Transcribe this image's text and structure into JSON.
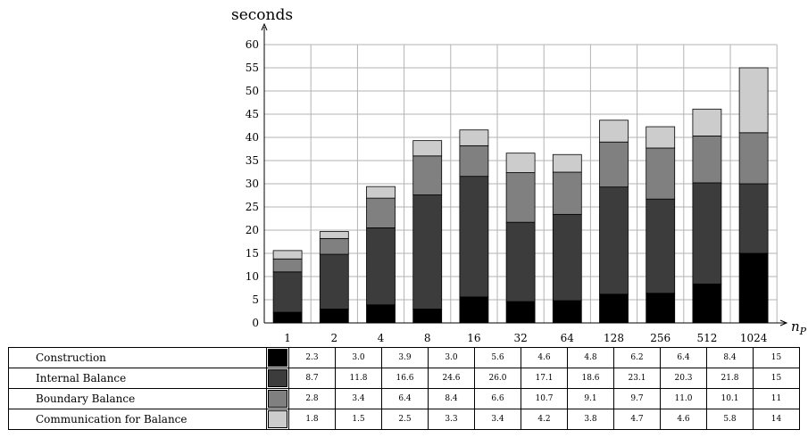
{
  "chart_data": {
    "type": "bar",
    "stacked": true,
    "ylabel": "seconds",
    "xlabel": "n_P",
    "ylim": [
      0,
      60
    ],
    "yticks": [
      0,
      5,
      10,
      15,
      20,
      25,
      30,
      35,
      40,
      45,
      50,
      55,
      60
    ],
    "grid": true,
    "categories": [
      "1",
      "2",
      "4",
      "8",
      "16",
      "32",
      "64",
      "128",
      "256",
      "512",
      "1024"
    ],
    "series": [
      {
        "name": "Construction",
        "color": "#000000",
        "values": [
          2.3,
          3.0,
          3.9,
          3.0,
          5.6,
          4.6,
          4.8,
          6.2,
          6.4,
          8.4,
          15
        ]
      },
      {
        "name": "Internal Balance",
        "color": "#3c3c3c",
        "values": [
          8.7,
          11.8,
          16.6,
          24.6,
          26.0,
          17.1,
          18.6,
          23.1,
          20.3,
          21.8,
          15
        ]
      },
      {
        "name": "Boundary Balance",
        "color": "#808080",
        "values": [
          2.8,
          3.4,
          6.4,
          8.4,
          6.6,
          10.7,
          9.1,
          9.7,
          11.0,
          10.1,
          11
        ]
      },
      {
        "name": "Communication for Balance",
        "color": "#cccccc",
        "values": [
          1.8,
          1.5,
          2.5,
          3.3,
          3.4,
          4.2,
          3.8,
          4.7,
          4.6,
          5.8,
          14
        ]
      }
    ],
    "value_labels": [
      [
        "2.3",
        "3.0",
        "3.9",
        "3.0",
        "5.6",
        "4.6",
        "4.8",
        "6.2",
        "6.4",
        "8.4",
        "15"
      ],
      [
        "8.7",
        "11.8",
        "16.6",
        "24.6",
        "26.0",
        "17.1",
        "18.6",
        "23.1",
        "20.3",
        "21.8",
        "15"
      ],
      [
        "2.8",
        "3.4",
        "6.4",
        "8.4",
        "6.6",
        "10.7",
        "9.1",
        "9.7",
        "11.0",
        "10.1",
        "11"
      ],
      [
        "1.8",
        "1.5",
        "2.5",
        "3.3",
        "3.4",
        "4.2",
        "3.8",
        "4.7",
        "4.6",
        "5.8",
        "14"
      ]
    ],
    "legend": "table-below"
  }
}
